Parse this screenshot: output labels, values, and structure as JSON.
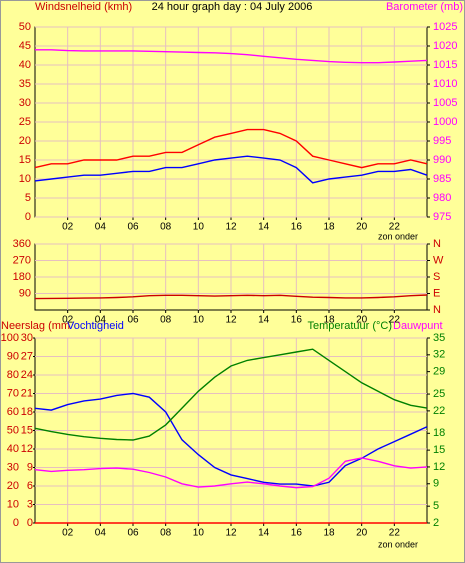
{
  "chart_data": [
    {
      "type": "line",
      "title": "24 hour graph day : 04 July 2006",
      "y_label": "Windsnelheid (kmh)",
      "y2_label": "Barometer (mb)",
      "annotation": "zon onder",
      "xlim": [
        0,
        24
      ],
      "xticks": [
        {
          "value": 2,
          "label": "02"
        },
        {
          "value": 4,
          "label": "04"
        },
        {
          "value": 6,
          "label": "06"
        },
        {
          "value": 8,
          "label": "08"
        },
        {
          "value": 10,
          "label": "10"
        },
        {
          "value": 12,
          "label": "12"
        },
        {
          "value": 14,
          "label": "14"
        },
        {
          "value": 16,
          "label": "16"
        },
        {
          "value": 18,
          "label": "18"
        },
        {
          "value": 20,
          "label": "20"
        },
        {
          "value": 22,
          "label": "22"
        }
      ],
      "ylim": [
        0,
        50
      ],
      "yticks": [
        0,
        5,
        10,
        15,
        20,
        25,
        30,
        35,
        40,
        45,
        50
      ],
      "y2lim": [
        975,
        1025
      ],
      "y2ticks": [
        975,
        980,
        985,
        990,
        995,
        1000,
        1005,
        1010,
        1015,
        1020,
        1025
      ],
      "grid": true,
      "x": [
        0,
        1,
        2,
        3,
        4,
        5,
        6,
        7,
        8,
        9,
        10,
        11,
        12,
        13,
        14,
        15,
        16,
        17,
        18,
        19,
        20,
        21,
        22,
        23,
        24
      ],
      "series": [
        {
          "color": "#ff0000",
          "values": [
            13,
            14,
            14,
            15,
            15,
            15,
            16,
            16,
            17,
            17,
            19,
            21,
            22,
            23,
            23,
            22,
            20,
            16,
            15,
            14,
            13,
            14,
            14,
            15,
            14
          ]
        },
        {
          "color": "#0000ff",
          "values": [
            9.5,
            10,
            10.5,
            11,
            11,
            11.5,
            12,
            12,
            13,
            13,
            14,
            15,
            15.5,
            16,
            15.5,
            15,
            13,
            9,
            10,
            10.5,
            11,
            12,
            12,
            12.5,
            11
          ]
        },
        {
          "color": "#ff00ff",
          "axis": "y2",
          "values": [
            1019,
            1019,
            1018.8,
            1018.7,
            1018.7,
            1018.7,
            1018.7,
            1018.6,
            1018.5,
            1018.4,
            1018.3,
            1018.2,
            1018,
            1017.7,
            1017.3,
            1016.9,
            1016.5,
            1016.2,
            1015.9,
            1015.7,
            1015.6,
            1015.6,
            1015.8,
            1016,
            1016.2
          ]
        }
      ]
    },
    {
      "type": "line",
      "xlim": [
        0,
        24
      ],
      "xticks": [
        {
          "value": 2,
          "label": "02"
        },
        {
          "value": 4,
          "label": "04"
        },
        {
          "value": 6,
          "label": "06"
        },
        {
          "value": 8,
          "label": "08"
        },
        {
          "value": 10,
          "label": "10"
        },
        {
          "value": 12,
          "label": "12"
        },
        {
          "value": 14,
          "label": "14"
        },
        {
          "value": 16,
          "label": "16"
        },
        {
          "value": 18,
          "label": "18"
        },
        {
          "value": 20,
          "label": "20"
        },
        {
          "value": 22,
          "label": "22"
        }
      ],
      "ylim": [
        0,
        360
      ],
      "yticks": [
        90,
        180,
        270,
        360
      ],
      "y2lim": [
        0,
        360
      ],
      "y2ticks": [
        {
          "value": 0,
          "label": "N"
        },
        {
          "value": 90,
          "label": "E"
        },
        {
          "value": 180,
          "label": "S"
        },
        {
          "value": 270,
          "label": "W"
        },
        {
          "value": 360,
          "label": "N"
        }
      ],
      "grid": true,
      "x": [
        0,
        1,
        2,
        3,
        4,
        5,
        6,
        7,
        8,
        9,
        10,
        11,
        12,
        13,
        14,
        15,
        16,
        17,
        18,
        19,
        20,
        21,
        22,
        23,
        24
      ],
      "series": [
        {
          "color": "#cc0000",
          "values": [
            62,
            63,
            64,
            65,
            66,
            68,
            72,
            78,
            80,
            80,
            78,
            76,
            78,
            80,
            78,
            80,
            75,
            70,
            68,
            66,
            66,
            68,
            72,
            78,
            82
          ]
        }
      ]
    },
    {
      "type": "line",
      "annotation": "zon onder",
      "xlim": [
        0,
        24
      ],
      "xticks": [
        {
          "value": 2,
          "label": "02"
        },
        {
          "value": 4,
          "label": "04"
        },
        {
          "value": 6,
          "label": "06"
        },
        {
          "value": 8,
          "label": "08"
        },
        {
          "value": 10,
          "label": "10"
        },
        {
          "value": 12,
          "label": "12"
        },
        {
          "value": 14,
          "label": "14"
        },
        {
          "value": 16,
          "label": "16"
        },
        {
          "value": 18,
          "label": "18"
        },
        {
          "value": 20,
          "label": "20"
        },
        {
          "value": 22,
          "label": "22"
        }
      ],
      "ylim": [
        0,
        100
      ],
      "yticks": [
        0,
        10,
        20,
        30,
        40,
        50,
        60,
        70,
        80,
        90,
        100
      ],
      "y3lim": [
        0,
        30
      ],
      "y3ticks": [
        0,
        3,
        6,
        9,
        12,
        15,
        18,
        21,
        24,
        27,
        30
      ],
      "y2lim": [
        2,
        35
      ],
      "y2ticks": [
        2,
        5,
        9,
        12,
        15,
        18,
        22,
        25,
        29,
        32,
        35
      ],
      "grid": true,
      "x": [
        0,
        1,
        2,
        3,
        4,
        5,
        6,
        7,
        8,
        9,
        10,
        11,
        12,
        13,
        14,
        15,
        16,
        17,
        18,
        19,
        20,
        21,
        22,
        23,
        24
      ],
      "series": [
        {
          "name": "Neerslag (mm",
          "color": "#ff0000",
          "axis": "y3",
          "values": [
            0,
            0,
            0,
            0,
            0,
            0,
            0,
            0,
            0,
            0,
            0,
            0,
            0,
            0,
            0,
            0,
            0,
            0,
            0,
            0,
            0,
            0,
            0,
            0,
            0
          ]
        },
        {
          "name": "Vochtigheid",
          "color": "#0000ff",
          "values": [
            62,
            61,
            64,
            66,
            67,
            69,
            70,
            68,
            60,
            45,
            37,
            30,
            26,
            24,
            22,
            21,
            21,
            20,
            22,
            31,
            35,
            40,
            44,
            48,
            52
          ]
        },
        {
          "name": "Temperatuur (°C)",
          "color": "#008000",
          "axis": "y2",
          "values": [
            18.9,
            18.3,
            17.8,
            17.4,
            17.1,
            16.9,
            16.8,
            17.5,
            19.5,
            22.5,
            25.5,
            28,
            30,
            31,
            31.5,
            32,
            32.5,
            33,
            31,
            29,
            27,
            25.5,
            24,
            23,
            22.5
          ]
        },
        {
          "name": "Dauwpunt",
          "color": "#ff00ff",
          "axis": "y2",
          "values": [
            11.5,
            11.2,
            11.4,
            11.5,
            11.7,
            11.8,
            11.6,
            11,
            10.2,
            9,
            8.4,
            8.6,
            9,
            9.3,
            9,
            8.6,
            8.3,
            8.5,
            10,
            13,
            13.6,
            13,
            12.2,
            11.8,
            12
          ]
        }
      ]
    }
  ]
}
